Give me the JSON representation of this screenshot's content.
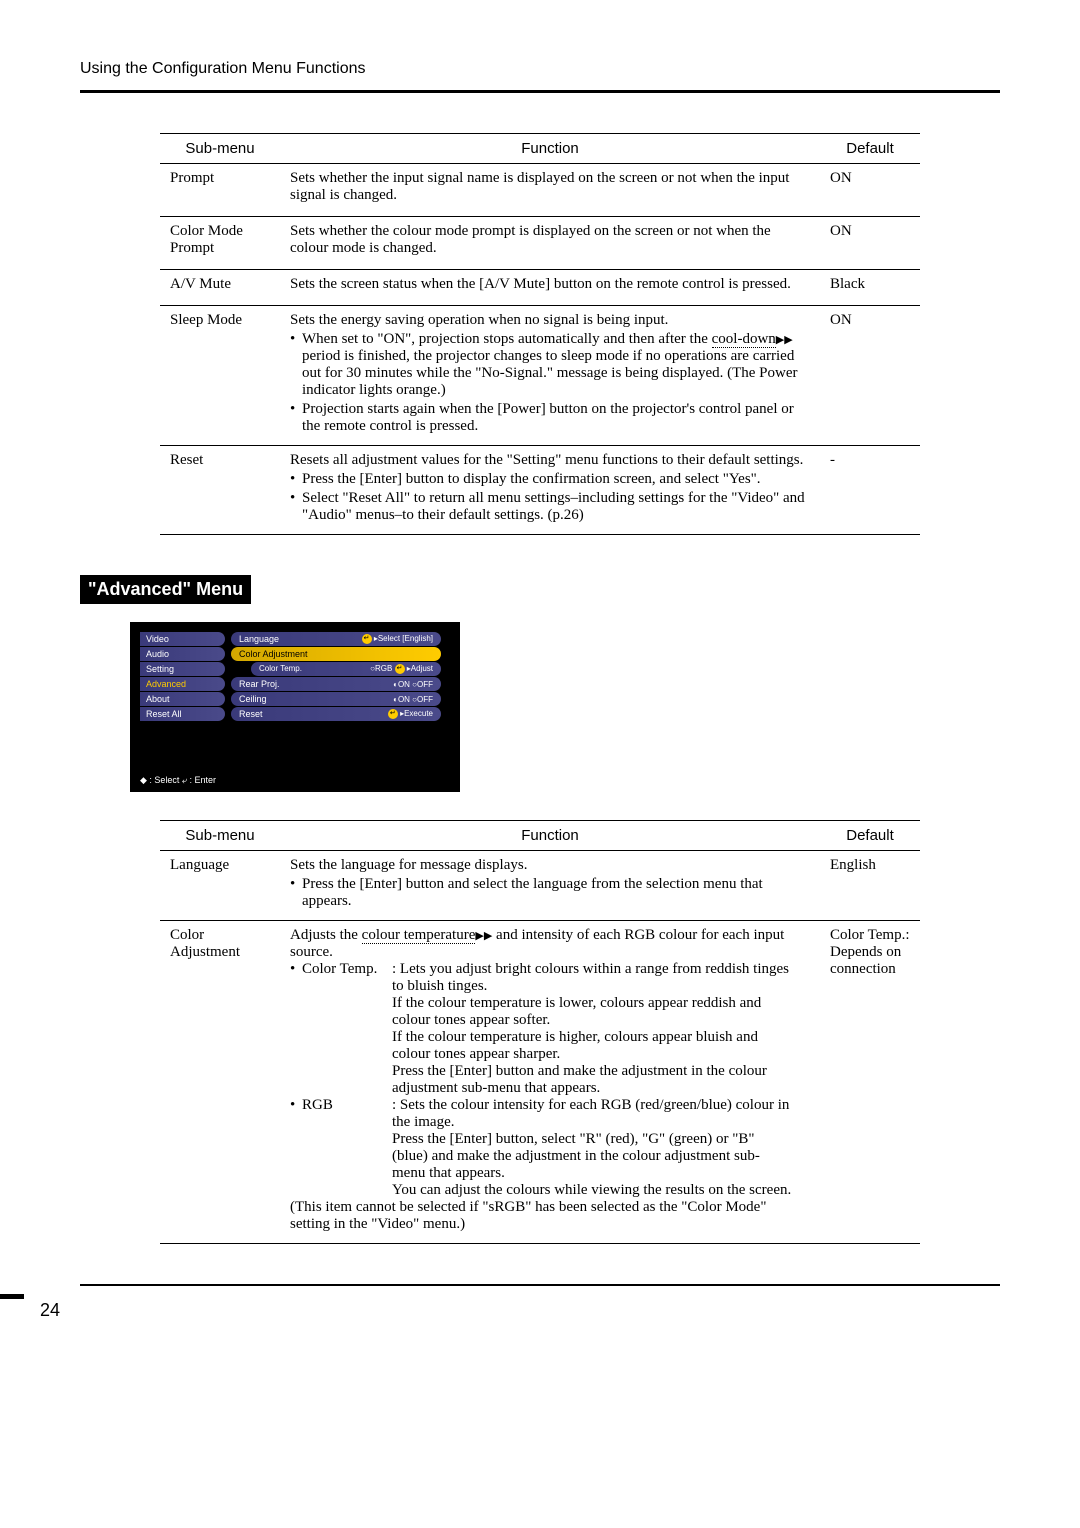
{
  "page": {
    "header": "Using the Configuration Menu Functions",
    "number": "24"
  },
  "table1": {
    "headers": {
      "sub": "Sub-menu",
      "func": "Function",
      "def": "Default"
    },
    "rows": [
      {
        "sub": "Prompt",
        "func_intro": "Sets whether the input signal name is displayed on the screen or not when the input signal is changed.",
        "bullets": [],
        "def": "ON"
      },
      {
        "sub": "Color Mode Prompt",
        "func_intro": "Sets whether the colour mode prompt is displayed on the screen or not when the colour mode is changed.",
        "bullets": [],
        "def": "ON"
      },
      {
        "sub": "A/V Mute",
        "func_intro": "Sets the screen status when the [A/V Mute] button on the remote control is pressed.",
        "bullets": [],
        "def": "Black"
      },
      {
        "sub": "Sleep Mode",
        "func_intro": "Sets the energy saving operation when no signal is being input.",
        "bullets": [
          "When set to \"ON\", projection stops automatically and then after the <span class=\"dotted-underline\">cool-down</span><span class=\"glossary-arrow\">▶▶</span> period is finished, the projector changes to sleep mode if no operations are carried out for 30 minutes while the \"No-Signal.\" message is being displayed. (The Power indicator lights orange.)",
          "Projection starts again when the [Power] button on the projector's control panel or the remote control is pressed."
        ],
        "def": "ON"
      },
      {
        "sub": "Reset",
        "func_intro": "Resets all adjustment values for the \"Setting\" menu functions to their default settings.",
        "bullets": [
          "Press the [Enter] button to display the confirmation screen, and select \"Yes\".",
          "Select \"Reset All\" to return all menu settings–including settings for the \"Video\" and \"Audio\" menus–to their default settings. (p.26)"
        ],
        "def": "-"
      }
    ]
  },
  "section2": {
    "title": "\"Advanced\" Menu"
  },
  "menushot": {
    "left_tabs": [
      "Video",
      "Audio",
      "Setting",
      "Advanced",
      "About",
      "Reset All"
    ],
    "active_tab_index": 3,
    "rows": [
      {
        "label": "Language",
        "right": "⤶ ▸Select    [English]"
      },
      {
        "label": "Color Adjustment",
        "highlighted": true
      },
      {
        "subrow": true,
        "label": "Color Temp.",
        "right": "○RGB   ⤶ ▸Adjust"
      },
      {
        "label": "Rear Proj.",
        "right": "◐ON ○OFF"
      },
      {
        "label": "Ceiling",
        "right": "◐ON ○OFF"
      },
      {
        "label": "Reset",
        "right": "⤶ ▸Execute"
      }
    ],
    "footer": "◆ : Select    ⤶ : Enter"
  },
  "table2": {
    "headers": {
      "sub": "Sub-menu",
      "func": "Function",
      "def": "Default"
    },
    "rows": [
      {
        "sub": "Language",
        "func_html": "Sets the language for message displays.<ul class=\"bullet-list\"><li>Press the [Enter] button and select the language from the selection menu that appears.</li></ul>",
        "def": "English"
      },
      {
        "sub": "Color Adjustment",
        "func_html": "Adjusts the <span class=\"dotted-underline\">colour temperature</span><span class=\"glossary-arrow\">▶▶</span> and intensity of each RGB colour for each input source.<ul class=\"sub-def-list\"><li><span class=\"def-term\">Color Temp.</span><span class=\"def-desc\">: Lets you adjust bright colours within a range from reddish tinges to bluish tinges.<br>If the colour temperature is lower, colours appear reddish and colour tones appear softer.<br>If the colour temperature is higher, colours appear bluish and colour tones appear sharper.<br>Press the [Enter] button and make the adjustment in the colour adjustment sub-menu that appears.</span></li><li><span class=\"def-term\">RGB</span><span class=\"def-desc\">: Sets the colour intensity for each RGB (red/green/blue) colour in the image.<br>Press the [Enter] button, select \"R\" (red), \"G\" (green) or \"B\" (blue) and make the adjustment in the colour adjustment sub-menu that appears.<br>You can adjust the colours while viewing the results on the screen.</span></li></ul>(This item cannot be selected if \"sRGB\" has been selected as the \"Color Mode\" setting in the \"Video\" menu.)",
        "def": "Color Temp.: Depends on connection"
      }
    ]
  }
}
